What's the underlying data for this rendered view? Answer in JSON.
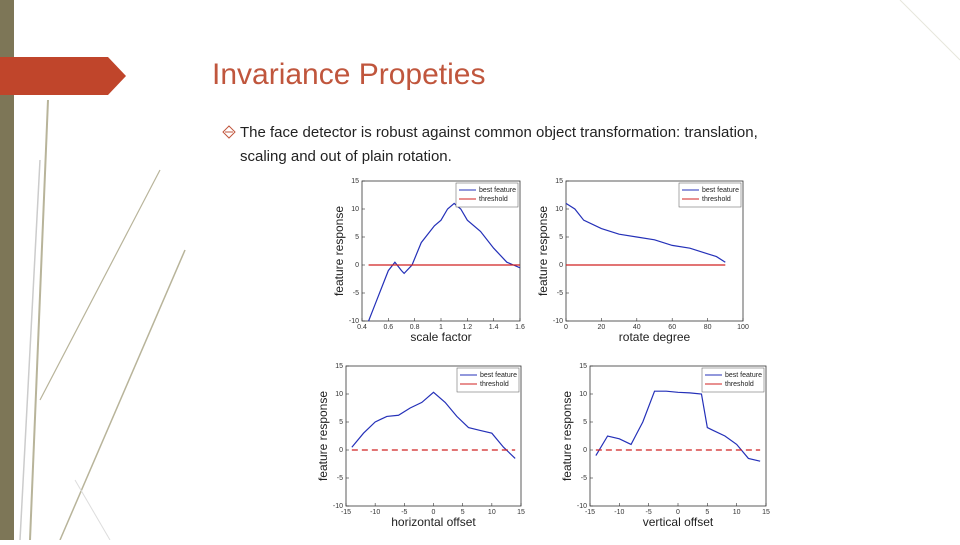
{
  "slide": {
    "title": "Invariance Propeties",
    "bullet": [
      "The face detector is robust against common object transformation: translation,",
      "scaling and out of plain rotation."
    ]
  },
  "chart_data": [
    {
      "type": "line",
      "x_label": "scale factor",
      "y_label": "feature response",
      "x": [
        0.45,
        0.5,
        0.55,
        0.6,
        0.65,
        0.7,
        0.72,
        0.78,
        0.85,
        0.95,
        1.0,
        1.05,
        1.1,
        1.15,
        1.2,
        1.3,
        1.4,
        1.5,
        1.55,
        1.6
      ],
      "series": [
        {
          "name": "best feature",
          "color": "#2430b8",
          "values": [
            -10,
            -7,
            -4,
            -1,
            0.5,
            -1,
            -1.5,
            0,
            4,
            7,
            8,
            10,
            11,
            10,
            8,
            6,
            3,
            0.5,
            0,
            -0.5
          ],
          "style": "solid"
        },
        {
          "name": "threshold",
          "color": "#d02020",
          "values": [
            0,
            0,
            0,
            0,
            0,
            0,
            0,
            0,
            0,
            0,
            0,
            0,
            0,
            0,
            0,
            0,
            0,
            0,
            0,
            0
          ],
          "style": "solid"
        }
      ],
      "xlim": [
        0.4,
        1.6
      ],
      "xticks": [
        0.4,
        0.6,
        0.8,
        1,
        1.2,
        1.4,
        1.6
      ],
      "ylim": [
        -10,
        15
      ],
      "yticks": [
        -10,
        -5,
        0,
        5,
        10,
        15
      ]
    },
    {
      "type": "line",
      "x_label": "rotate degree",
      "y_label": "feature response",
      "x": [
        0,
        5,
        10,
        20,
        30,
        40,
        50,
        60,
        70,
        80,
        85,
        90
      ],
      "series": [
        {
          "name": "best feature",
          "color": "#2430b8",
          "values": [
            11,
            10,
            8,
            6.5,
            5.5,
            5,
            4.5,
            3.5,
            3,
            2,
            1.5,
            0.5
          ],
          "style": "solid"
        },
        {
          "name": "threshold",
          "color": "#d02020",
          "values": [
            0,
            0,
            0,
            0,
            0,
            0,
            0,
            0,
            0,
            0,
            0,
            0
          ],
          "style": "solid"
        }
      ],
      "xlim": [
        0,
        100
      ],
      "xticks": [
        0,
        20,
        40,
        60,
        80,
        100
      ],
      "ylim": [
        -10,
        15
      ],
      "yticks": [
        -10,
        -5,
        0,
        5,
        10,
        15
      ]
    },
    {
      "type": "line",
      "x_label": "horizontal offset",
      "y_label": "feature response",
      "x": [
        -14,
        -12,
        -10,
        -8,
        -6,
        -4,
        -2,
        0,
        2,
        4,
        6,
        8,
        10,
        12,
        14
      ],
      "series": [
        {
          "name": "best feature",
          "color": "#2430b8",
          "values": [
            0.5,
            3,
            5,
            6,
            6.2,
            7.5,
            8.5,
            10.3,
            8.5,
            6,
            4,
            3.5,
            3,
            0.5,
            -1.5
          ],
          "style": "solid"
        },
        {
          "name": "threshold",
          "color": "#d02020",
          "values": [
            0,
            0,
            0,
            0,
            0,
            0,
            0,
            0,
            0,
            0,
            0,
            0,
            0,
            0,
            0
          ],
          "style": "dashed"
        }
      ],
      "xlim": [
        -15,
        15
      ],
      "xticks": [
        -15,
        -10,
        -5,
        0,
        5,
        10,
        15
      ],
      "ylim": [
        -10,
        15
      ],
      "yticks": [
        -10,
        -5,
        0,
        5,
        10,
        15
      ]
    },
    {
      "type": "line",
      "x_label": "vertical offset",
      "y_label": "feature response",
      "x": [
        -14,
        -12,
        -10,
        -8,
        -6,
        -4,
        -2,
        0,
        2,
        4,
        5,
        6,
        8,
        10,
        12,
        14
      ],
      "series": [
        {
          "name": "best feature",
          "color": "#2430b8",
          "values": [
            -1,
            2.5,
            2,
            1,
            5,
            10.5,
            10.5,
            10.3,
            10.2,
            10,
            4,
            3.5,
            2.5,
            1,
            -1.5,
            -2
          ],
          "style": "solid"
        },
        {
          "name": "threshold",
          "color": "#d02020",
          "values": [
            0,
            0,
            0,
            0,
            0,
            0,
            0,
            0,
            0,
            0,
            0,
            0,
            0,
            0,
            0,
            0
          ],
          "style": "dashed"
        }
      ],
      "xlim": [
        -15,
        15
      ],
      "xticks": [
        -15,
        -10,
        -5,
        0,
        5,
        10,
        15
      ],
      "ylim": [
        -10,
        15
      ],
      "yticks": [
        -10,
        -5,
        0,
        5,
        10,
        15
      ]
    }
  ]
}
